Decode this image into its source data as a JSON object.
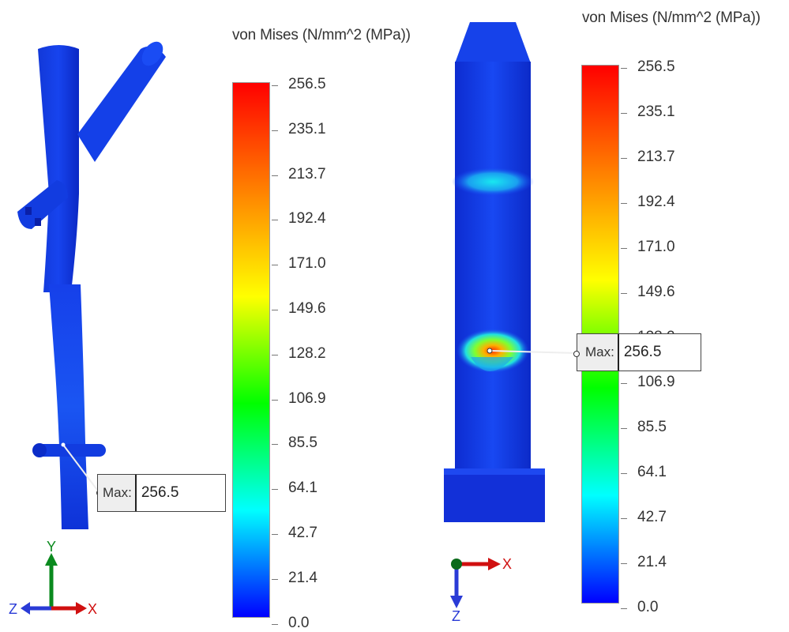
{
  "left_plot": {
    "legend_title": "von Mises (N/mm^2 (MPa))",
    "colorbar_labels": [
      "256.5",
      "235.1",
      "213.7",
      "192.4",
      "171.0",
      "149.6",
      "128.2",
      "106.9",
      "85.5",
      "64.1",
      "42.7",
      "21.4",
      "0.0"
    ],
    "max_probe": {
      "label": "Max:",
      "value": "256.5"
    },
    "triad": {
      "x": "X",
      "y": "Y",
      "z": "Z"
    }
  },
  "right_plot": {
    "legend_title": "von Mises (N/mm^2 (MPa))",
    "colorbar_labels": [
      "256.5",
      "235.1",
      "213.7",
      "192.4",
      "171.0",
      "149.6",
      "128.2",
      "106.9",
      "85.5",
      "64.1",
      "42.7",
      "21.4",
      "0.0"
    ],
    "max_probe": {
      "label": "Max:",
      "value": "256.5"
    },
    "triad": {
      "x": "X",
      "z": "Z"
    }
  },
  "colors": {
    "colorbar_stops": [
      "#ff0000",
      "#ff8000",
      "#ffff00",
      "#00ff00",
      "#00ffff",
      "#0000ff"
    ],
    "model_blue": "#0d2fe0",
    "triad_x": "#d01010",
    "triad_y": "#0a8a1e",
    "triad_z": "#2a3bd6"
  }
}
